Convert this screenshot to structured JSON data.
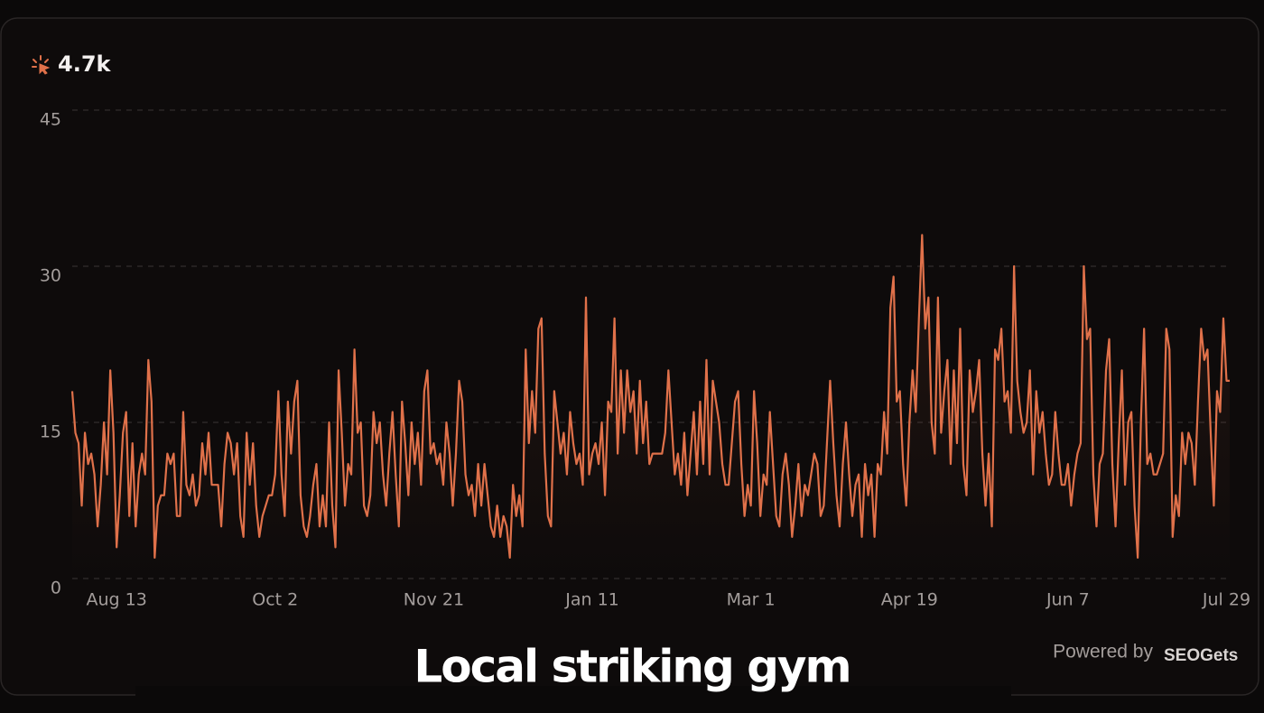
{
  "chart_data": {
    "type": "line",
    "metric_value": "4.7k",
    "caption": "Local striking gym",
    "attribution": "Powered by",
    "brand": "SEOGets",
    "color": "#e0714a",
    "grid": true,
    "ylim": [
      0,
      45
    ],
    "yticks": [
      0,
      15,
      30,
      45
    ],
    "categories": [
      null,
      null,
      null,
      null,
      null,
      null,
      null,
      null,
      null,
      null,
      null,
      null,
      null,
      null,
      "Aug 13",
      null,
      null,
      null,
      null,
      null,
      null,
      null,
      null,
      null,
      null,
      null,
      null,
      null,
      null,
      null,
      null,
      null,
      null,
      null,
      null,
      null,
      null,
      null,
      null,
      null,
      null,
      null,
      null,
      null,
      null,
      null,
      null,
      null,
      null,
      null,
      null,
      null,
      null,
      null,
      null,
      null,
      null,
      null,
      null,
      null,
      null,
      null,
      null,
      null,
      "Oct 2",
      null,
      null,
      null,
      null,
      null,
      null,
      null,
      null,
      null,
      null,
      null,
      null,
      null,
      null,
      null,
      null,
      null,
      null,
      null,
      null,
      null,
      null,
      null,
      null,
      null,
      null,
      null,
      null,
      null,
      null,
      null,
      null,
      null,
      null,
      null,
      null,
      null,
      null,
      null,
      null,
      null,
      null,
      null,
      null,
      null,
      null,
      null,
      null,
      null,
      "Nov 21",
      null,
      null,
      null,
      null,
      null,
      null,
      null,
      null,
      null,
      null,
      null,
      null,
      null,
      null,
      null,
      null,
      null,
      null,
      null,
      null,
      null,
      null,
      null,
      null,
      null,
      null,
      null,
      null,
      null,
      null,
      null,
      null,
      null,
      null,
      null,
      null,
      null,
      null,
      null,
      null,
      null,
      null,
      null,
      null,
      null,
      null,
      null,
      null,
      null,
      "Jan 11",
      null,
      null,
      null,
      null,
      null,
      null,
      null,
      null,
      null,
      null,
      null,
      null,
      null,
      null,
      null,
      null,
      null,
      null,
      null,
      null,
      null,
      null,
      null,
      null,
      null,
      null,
      null,
      null,
      null,
      null,
      null,
      null,
      null,
      null,
      null,
      null,
      null,
      null,
      null,
      null,
      null,
      null,
      null,
      null,
      null,
      null,
      null,
      null,
      null,
      "Mar 1",
      null,
      null,
      null,
      null,
      null,
      null,
      null,
      null,
      null,
      null,
      null,
      null,
      null,
      null,
      null,
      null,
      null,
      null,
      null,
      null,
      null,
      null,
      null,
      null,
      null,
      null,
      null,
      null,
      null,
      null,
      null,
      null,
      null,
      null,
      null,
      null,
      null,
      null,
      null,
      null,
      null,
      null,
      null,
      null,
      null,
      null,
      null,
      null,
      null,
      "Apr 19",
      null,
      null,
      null,
      null,
      null,
      null,
      null,
      null,
      null,
      null,
      null,
      null,
      null,
      null,
      null,
      null,
      null,
      null,
      null,
      null,
      null,
      null,
      null,
      null,
      null,
      null,
      null,
      null,
      null,
      null,
      null,
      null,
      null,
      null,
      null,
      null,
      null,
      null,
      null,
      null,
      null,
      null,
      null,
      null,
      null,
      null,
      null,
      null,
      null,
      "Jun 7",
      null,
      null,
      null,
      null,
      null,
      null,
      null,
      null,
      null,
      null,
      null,
      null,
      null,
      null,
      null,
      null,
      null,
      null,
      null,
      null,
      null,
      null,
      null,
      null,
      null,
      null,
      null,
      null,
      null,
      null,
      null,
      null,
      null,
      null,
      null,
      null,
      null,
      null,
      null,
      null,
      null,
      null,
      null,
      null,
      null,
      null,
      null,
      null,
      null,
      "Jul 29",
      null
    ],
    "values": [
      18,
      14,
      13,
      7,
      14,
      11,
      12,
      10,
      5,
      9,
      15,
      10,
      20,
      14,
      3,
      8,
      14,
      16,
      6,
      13,
      5,
      10,
      12,
      10,
      21,
      17,
      2,
      7,
      8,
      8,
      12,
      11,
      12,
      6,
      6,
      16,
      9,
      8,
      10,
      7,
      8,
      13,
      10,
      14,
      9,
      9,
      9,
      5,
      11,
      14,
      13,
      10,
      13,
      6,
      4,
      14,
      9,
      13,
      7,
      4,
      6,
      7,
      8,
      8,
      10,
      18,
      10,
      6,
      17,
      12,
      17,
      19,
      8,
      5,
      4,
      6,
      9,
      11,
      5,
      8,
      5,
      15,
      7,
      3,
      20,
      14,
      7,
      11,
      10,
      22,
      14,
      15,
      7,
      6,
      8,
      16,
      13,
      15,
      10,
      7,
      12,
      16,
      10,
      5,
      17,
      13,
      8,
      15,
      11,
      14,
      9,
      18,
      20,
      12,
      13,
      11,
      12,
      9,
      15,
      12,
      7,
      12,
      19,
      17,
      10,
      8,
      9,
      6,
      11,
      7,
      11,
      8,
      5,
      4,
      7,
      4,
      6,
      5,
      2,
      9,
      6,
      8,
      5,
      22,
      13,
      18,
      14,
      24,
      25,
      12,
      6,
      5,
      18,
      15,
      12,
      14,
      10,
      16,
      13,
      11,
      12,
      9,
      27,
      10,
      12,
      13,
      11,
      15,
      8,
      17,
      16,
      25,
      12,
      20,
      14,
      20,
      16,
      18,
      12,
      19,
      13,
      17,
      11,
      12,
      12,
      12,
      12,
      14,
      20,
      15,
      10,
      12,
      9,
      14,
      8,
      12,
      16,
      10,
      17,
      11,
      21,
      10,
      19,
      17,
      15,
      11,
      9,
      9,
      13,
      17,
      18,
      11,
      6,
      9,
      7,
      18,
      13,
      6,
      10,
      9,
      16,
      11,
      6,
      5,
      10,
      12,
      9,
      4,
      7,
      11,
      6,
      9,
      8,
      10,
      12,
      11,
      6,
      7,
      13,
      19,
      13,
      8,
      5,
      11,
      15,
      10,
      6,
      9,
      10,
      4,
      11,
      8,
      10,
      4,
      11,
      10,
      16,
      12,
      26,
      29,
      17,
      18,
      11,
      7,
      15,
      20,
      16,
      25,
      33,
      24,
      27,
      15,
      12,
      27,
      14,
      18,
      21,
      11,
      20,
      13,
      24,
      11,
      8,
      20,
      16,
      18,
      21,
      12,
      7,
      12,
      5,
      22,
      21,
      24,
      17,
      18,
      14,
      30,
      19,
      16,
      14,
      15,
      20,
      10,
      18,
      14,
      16,
      12,
      9,
      10,
      16,
      12,
      9,
      9,
      11,
      7,
      10,
      12,
      13,
      30,
      23,
      24,
      10,
      5,
      11,
      12,
      20,
      23,
      11,
      5,
      13,
      20,
      9,
      15,
      16,
      7,
      2,
      15,
      24,
      11,
      12,
      10,
      10,
      11,
      12,
      24,
      22,
      4,
      8,
      6,
      14,
      11,
      14,
      13,
      9,
      17,
      24,
      21,
      22,
      14,
      7,
      18,
      16,
      25,
      19,
      19
    ]
  }
}
